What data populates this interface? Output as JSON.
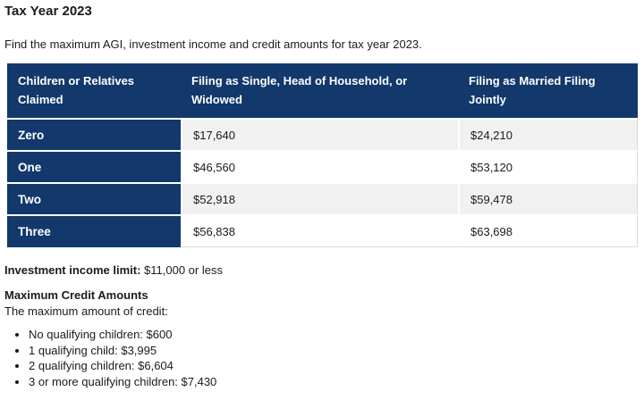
{
  "page": {
    "title": "Tax Year 2023",
    "intro": "Find the maximum AGI, investment income and credit amounts for tax year 2023."
  },
  "table": {
    "headers": [
      "Children or Relatives Claimed",
      "Filing as Single, Head of Household, or Widowed",
      "Filing as Married Filing Jointly"
    ],
    "rows": [
      {
        "label": "Zero",
        "single": "$17,640",
        "married": "$24,210"
      },
      {
        "label": "One",
        "single": "$46,560",
        "married": "$53,120"
      },
      {
        "label": "Two",
        "single": "$52,918",
        "married": "$59,478"
      },
      {
        "label": "Three",
        "single": "$56,838",
        "married": "$63,698"
      }
    ]
  },
  "investment_income": {
    "label": "Investment income limit:",
    "value": " $11,000 or less"
  },
  "credits": {
    "heading": "Maximum Credit Amounts",
    "subheading": "The maximum amount of credit:",
    "items": [
      "No qualifying children: $600",
      "1 qualifying child: $3,995",
      "2 qualifying children: $6,604",
      "3 or more qualifying children: $7,430"
    ]
  },
  "colors": {
    "header_bg": "#12386c",
    "row_alt_bg": "#f1f1f1",
    "text": "#1b1b1b"
  }
}
